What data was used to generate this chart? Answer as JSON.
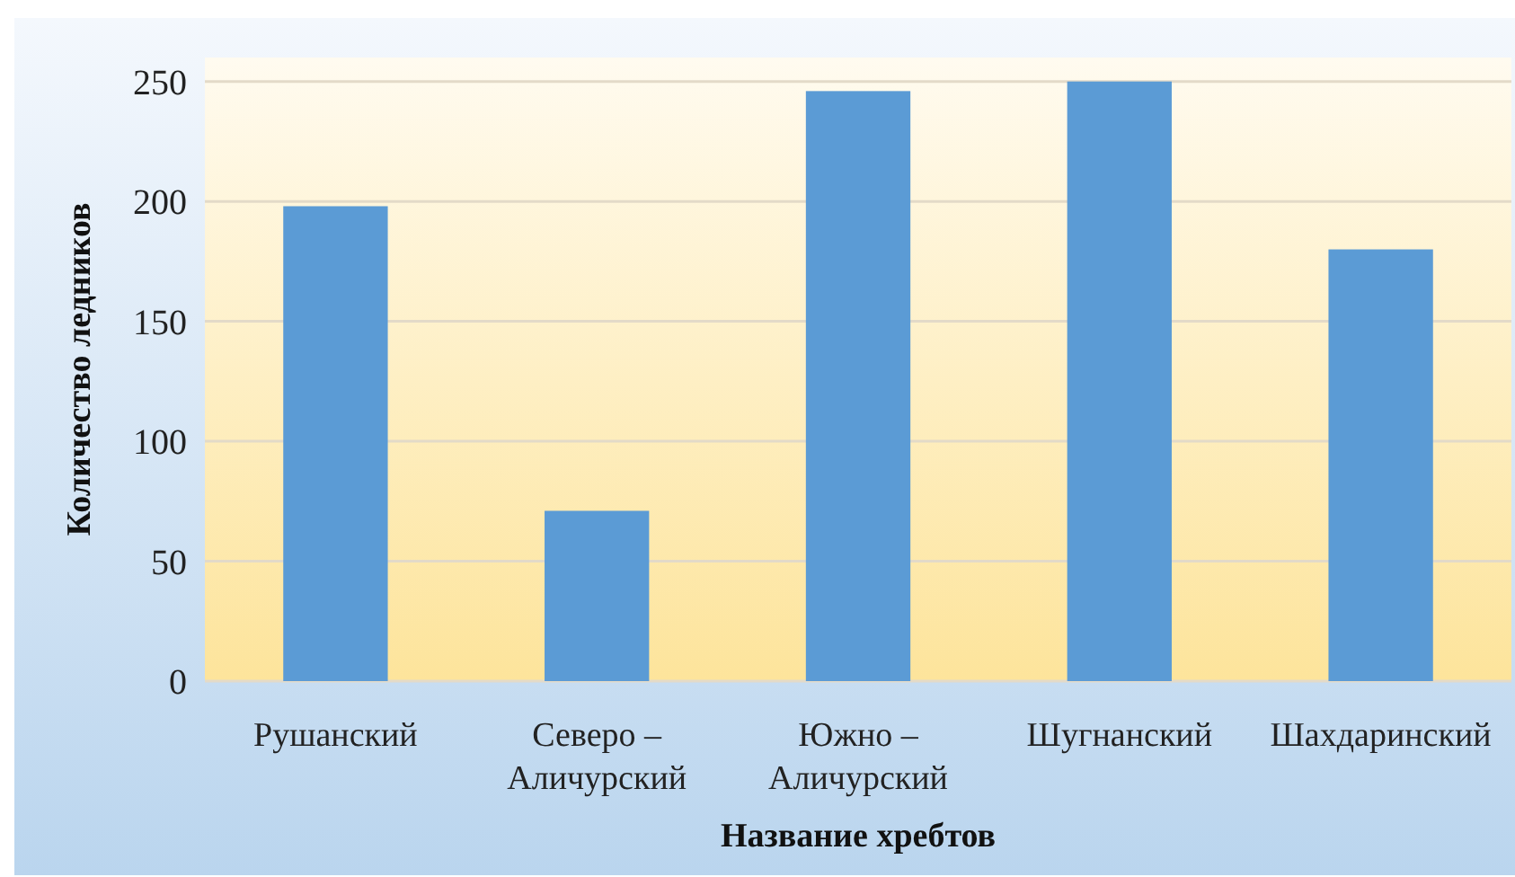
{
  "chart_data": {
    "type": "bar",
    "xlabel": "Название хребтов",
    "ylabel": "Количество ледников",
    "categories": [
      "Рушанский",
      "Северо – Аличурский",
      "Южно – Аличурский",
      "Шугнанский",
      "Шахдаринский"
    ],
    "values": [
      198,
      71,
      246,
      250,
      180
    ],
    "color": "#5b9bd5",
    "ylim": [
      0,
      260
    ],
    "yticks": [
      0,
      50,
      100,
      150,
      200,
      250
    ],
    "grid": "y"
  }
}
